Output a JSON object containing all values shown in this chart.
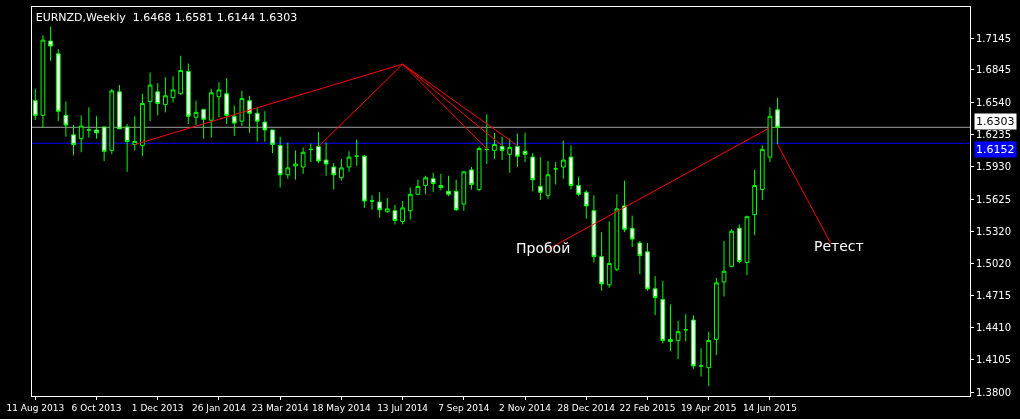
{
  "chart_data": {
    "type": "candlestick",
    "title": "EURNZD,Weekly  1.6468 1.6581 1.6144 1.6303",
    "color": "#00ff00",
    "x": [
      "2013-08-11",
      "2013-08-18",
      "2013-08-25",
      "2013-09-01",
      "2013-09-08",
      "2013-09-15",
      "2013-09-22",
      "2013-09-29",
      "2013-10-06",
      "2013-10-13",
      "2013-10-20",
      "2013-10-27",
      "2013-11-03",
      "2013-11-10",
      "2013-11-17",
      "2013-11-24",
      "2013-12-01",
      "2013-12-08",
      "2013-12-15",
      "2013-12-22",
      "2013-12-29",
      "2014-01-05",
      "2014-01-12",
      "2014-01-19",
      "2014-01-26",
      "2014-02-02",
      "2014-02-09",
      "2014-02-16",
      "2014-02-23",
      "2014-03-02",
      "2014-03-09",
      "2014-03-16",
      "2014-03-23",
      "2014-03-30",
      "2014-04-06",
      "2014-04-13",
      "2014-04-20",
      "2014-04-27",
      "2014-05-04",
      "2014-05-11",
      "2014-05-18",
      "2014-05-25",
      "2014-06-01",
      "2014-06-08",
      "2014-06-15",
      "2014-06-22",
      "2014-06-29",
      "2014-07-06",
      "2014-07-13",
      "2014-07-20",
      "2014-07-27",
      "2014-08-03",
      "2014-08-10",
      "2014-08-17",
      "2014-08-24",
      "2014-08-31",
      "2014-09-07",
      "2014-09-14",
      "2014-09-21",
      "2014-09-28",
      "2014-10-05",
      "2014-10-12",
      "2014-10-19",
      "2014-10-26",
      "2014-11-02",
      "2014-11-09",
      "2014-11-16",
      "2014-11-23",
      "2014-11-30",
      "2014-12-07",
      "2014-12-14",
      "2014-12-21",
      "2014-12-28",
      "2015-01-04",
      "2015-01-11",
      "2015-01-18",
      "2015-01-25",
      "2015-02-01",
      "2015-02-08",
      "2015-02-15",
      "2015-02-22",
      "2015-03-01",
      "2015-03-08",
      "2015-03-15",
      "2015-03-22",
      "2015-03-29",
      "2015-04-05",
      "2015-04-12",
      "2015-04-19",
      "2015-04-26",
      "2015-05-03",
      "2015-05-10",
      "2015-05-17",
      "2015-05-24",
      "2015-05-31",
      "2015-06-07",
      "2015-06-14",
      "2015-06-21"
    ],
    "ohlc": [
      [
        1.6555,
        1.6666,
        1.637,
        1.6416
      ],
      [
        1.6416,
        1.7173,
        1.6297,
        1.7127
      ],
      [
        1.7118,
        1.7256,
        1.6932,
        1.7071
      ],
      [
        1.6997,
        1.7043,
        1.6361,
        1.6454
      ],
      [
        1.6416,
        1.6546,
        1.6214,
        1.6324
      ],
      [
        1.6232,
        1.6324,
        1.6039,
        1.614
      ],
      [
        1.6195,
        1.6416,
        1.6067,
        1.6315
      ],
      [
        1.6278,
        1.6491,
        1.6205,
        1.6278
      ],
      [
        1.6278,
        1.6407,
        1.6195,
        1.6251
      ],
      [
        1.6306,
        1.6306,
        1.5984,
        1.6076
      ],
      [
        1.6085,
        1.6666,
        1.6048,
        1.6647
      ],
      [
        1.6638,
        1.6702,
        1.6288,
        1.6288
      ],
      [
        1.6306,
        1.6334,
        1.5882,
        1.6168
      ],
      [
        1.614,
        1.6407,
        1.6085,
        1.6168
      ],
      [
        1.6131,
        1.662,
        1.603,
        1.6528
      ],
      [
        1.6546,
        1.6822,
        1.6361,
        1.6702
      ],
      [
        1.6638,
        1.6721,
        1.6416,
        1.6528
      ],
      [
        1.6519,
        1.6776,
        1.6444,
        1.6601
      ],
      [
        1.6583,
        1.6785,
        1.6537,
        1.6656
      ],
      [
        1.662,
        1.6979,
        1.6611,
        1.684
      ],
      [
        1.6831,
        1.6905,
        1.6334,
        1.6407
      ],
      [
        1.6398,
        1.6555,
        1.6324,
        1.6444
      ],
      [
        1.6472,
        1.6472,
        1.6195,
        1.6379
      ],
      [
        1.637,
        1.6666,
        1.6205,
        1.6629
      ],
      [
        1.6592,
        1.673,
        1.6398,
        1.6656
      ],
      [
        1.662,
        1.6767,
        1.6334,
        1.6416
      ],
      [
        1.6407,
        1.6509,
        1.6223,
        1.6343
      ],
      [
        1.6361,
        1.6647,
        1.6315,
        1.6574
      ],
      [
        1.6555,
        1.6601,
        1.6251,
        1.6435
      ],
      [
        1.6435,
        1.6491,
        1.6168,
        1.6361
      ],
      [
        1.6352,
        1.6454,
        1.6168,
        1.6278
      ],
      [
        1.6278,
        1.6278,
        1.6058,
        1.614
      ],
      [
        1.6131,
        1.6214,
        1.5734,
        1.5854
      ],
      [
        1.5854,
        1.6159,
        1.5817,
        1.5919
      ],
      [
        1.5938,
        1.6085,
        1.5808,
        1.5956
      ],
      [
        1.5928,
        1.6113,
        1.5863,
        1.6067
      ],
      [
        1.6094,
        1.615,
        1.5974,
        1.6094
      ],
      [
        1.6122,
        1.626,
        1.5965,
        1.5984
      ],
      [
        1.5993,
        1.6159,
        1.5845,
        1.5956
      ],
      [
        1.5928,
        1.5965,
        1.5716,
        1.5854
      ],
      [
        1.5826,
        1.6002,
        1.5799,
        1.5919
      ],
      [
        1.5928,
        1.6076,
        1.5882,
        1.6021
      ],
      [
        1.603,
        1.6187,
        1.5938,
        1.603
      ],
      [
        1.603,
        1.6039,
        1.5541,
        1.5606
      ],
      [
        1.5606,
        1.5661,
        1.5523,
        1.5606
      ],
      [
        1.5597,
        1.5689,
        1.5449,
        1.5523
      ],
      [
        1.5505,
        1.5634,
        1.5495,
        1.5532
      ],
      [
        1.5514,
        1.5569,
        1.5385,
        1.5422
      ],
      [
        1.5413,
        1.5606,
        1.5385,
        1.5541
      ],
      [
        1.5514,
        1.5734,
        1.5431,
        1.567
      ],
      [
        1.567,
        1.5808,
        1.5661,
        1.5744
      ],
      [
        1.5753,
        1.5845,
        1.567,
        1.5826
      ],
      [
        1.5817,
        1.5873,
        1.5689,
        1.5772
      ],
      [
        1.5753,
        1.5863,
        1.5707,
        1.5734
      ],
      [
        1.5698,
        1.5845,
        1.5652,
        1.567
      ],
      [
        1.5698,
        1.5808,
        1.5514,
        1.5523
      ],
      [
        1.5578,
        1.5891,
        1.5514,
        1.5882
      ],
      [
        1.59,
        1.5928,
        1.5716,
        1.5762
      ],
      [
        1.5716,
        1.6122,
        1.5698,
        1.6103
      ],
      [
        1.6094,
        1.6426,
        1.5956,
        1.6094
      ],
      [
        1.6085,
        1.6251,
        1.6002,
        1.614
      ],
      [
        1.6122,
        1.6214,
        1.5993,
        1.6085
      ],
      [
        1.6048,
        1.6195,
        1.5873,
        1.6113
      ],
      [
        1.6122,
        1.6242,
        1.5928,
        1.603
      ],
      [
        1.6076,
        1.6251,
        1.5974,
        1.6048
      ],
      [
        1.6021,
        1.6058,
        1.5698,
        1.5808
      ],
      [
        1.5744,
        1.6021,
        1.5615,
        1.5689
      ],
      [
        1.5661,
        1.5984,
        1.5624,
        1.5854
      ],
      [
        1.591,
        1.5974,
        1.5762,
        1.591
      ],
      [
        1.5928,
        1.6177,
        1.5817,
        1.5993
      ],
      [
        1.6021,
        1.6131,
        1.5716,
        1.5753
      ],
      [
        1.5753,
        1.5836,
        1.5652,
        1.567
      ],
      [
        1.5689,
        1.5707,
        1.544,
        1.556
      ],
      [
        1.5514,
        1.5661,
        1.5025,
        1.508
      ],
      [
        1.508,
        1.5311,
        1.4758,
        1.4823
      ],
      [
        1.4814,
        1.5413,
        1.4786,
        1.5016
      ],
      [
        1.4961,
        1.567,
        1.4942,
        1.5532
      ],
      [
        1.556,
        1.5799,
        1.5311,
        1.5339
      ],
      [
        1.5348,
        1.5468,
        1.5172,
        1.5246
      ],
      [
        1.5209,
        1.5228,
        1.4915,
        1.509
      ],
      [
        1.5126,
        1.5209,
        1.4758,
        1.4776
      ],
      [
        1.4776,
        1.4896,
        1.4527,
        1.4693
      ],
      [
        1.4675,
        1.485,
        1.4261,
        1.4288
      ],
      [
        1.4297,
        1.4629,
        1.4187,
        1.4279
      ],
      [
        1.4288,
        1.4472,
        1.4113,
        1.4371
      ],
      [
        1.4389,
        1.4537,
        1.4279,
        1.4389
      ],
      [
        1.4481,
        1.4527,
        1.402,
        1.4048
      ],
      [
        1.4048,
        1.4215,
        1.3947,
        1.4048
      ],
      [
        1.403,
        1.4371,
        1.3855,
        1.4288
      ],
      [
        1.4297,
        1.4878,
        1.415,
        1.4832
      ],
      [
        1.4841,
        1.5228,
        1.4703,
        1.4942
      ],
      [
        1.4988,
        1.5339,
        1.4979,
        1.532
      ],
      [
        1.5348,
        1.5385,
        1.5016,
        1.5034
      ],
      [
        1.5025,
        1.5468,
        1.4906,
        1.5458
      ],
      [
        1.5477,
        1.59,
        1.5283,
        1.5753
      ],
      [
        1.5716,
        1.6131,
        1.5615,
        1.6094
      ],
      [
        1.6021,
        1.6491,
        1.5974,
        1.6407
      ],
      [
        1.6468,
        1.6581,
        1.6144,
        1.6303
      ]
    ],
    "series": [
      {
        "type": "line",
        "color": "#ff0000",
        "x": [
          "2013-11-10",
          "2014-07-13"
        ],
        "values": [
          1.614,
          1.69
        ]
      },
      {
        "type": "line",
        "color": "#ff0000",
        "x": [
          "2014-04-27",
          "2014-07-13"
        ],
        "values": [
          1.612,
          1.69
        ]
      },
      {
        "type": "line",
        "color": "#ff0000",
        "x": [
          "2014-07-13",
          "2014-09-28"
        ],
        "values": [
          1.69,
          1.61
        ]
      },
      {
        "type": "line",
        "color": "#ff0000",
        "x": [
          "2014-07-13",
          "2014-10-12"
        ],
        "values": [
          1.69,
          1.613
        ]
      },
      {
        "type": "line",
        "color": "#ff0000",
        "x": [
          "2014-07-13",
          "2014-10-26"
        ],
        "values": [
          1.69,
          1.613
        ]
      },
      {
        "type": "line",
        "color": "#ff0000",
        "x": [
          "2014-11-23",
          "2015-06-14"
        ],
        "values": [
          1.515,
          1.63
        ]
      },
      {
        "type": "line",
        "color": "#ff0000",
        "x": [
          "2015-06-21",
          "2015-08-09"
        ],
        "values": [
          1.614,
          1.52
        ]
      }
    ],
    "ref_lines": [
      {
        "axis": "y",
        "value": 1.6303,
        "label": "1.6303",
        "color": "#a0a0a0"
      },
      {
        "axis": "y",
        "value": 1.6152,
        "label": "1.6152",
        "color": "#0000ff"
      }
    ],
    "annotations": [
      "Пробой",
      "Ретест"
    ],
    "xlim": [
      "2013-08-08",
      "2015-12-14"
    ],
    "xticks": [
      {
        "value": "2013-08-11",
        "label": "11 Aug 2013"
      },
      {
        "value": "2013-10-06",
        "label": "6 Oct 2013"
      },
      {
        "value": "2013-12-01",
        "label": "1 Dec 2013"
      },
      {
        "value": "2014-01-26",
        "label": "26 Jan 2014"
      },
      {
        "value": "2014-03-23",
        "label": "23 Mar 2014"
      },
      {
        "value": "2014-05-18",
        "label": "18 May 2014"
      },
      {
        "value": "2014-07-13",
        "label": "13 Jul 2014"
      },
      {
        "value": "2014-09-07",
        "label": "7 Sep 2014"
      },
      {
        "value": "2014-11-02",
        "label": "2 Nov 2014"
      },
      {
        "value": "2014-12-28",
        "label": "28 Dec 2014"
      },
      {
        "value": "2015-02-22",
        "label": "22 Feb 2015"
      },
      {
        "value": "2015-04-19",
        "label": "19 Apr 2015"
      },
      {
        "value": "2015-06-14",
        "label": "14 Jun 2015"
      }
    ],
    "ylim": [
      1.3763,
      1.744
    ],
    "yticks": [
      {
        "value": 1.7145,
        "label": "1.7145"
      },
      {
        "value": 1.6845,
        "label": "1.6845"
      },
      {
        "value": 1.654,
        "label": "1.6540"
      },
      {
        "value": 1.6235,
        "label": "1.6235"
      },
      {
        "value": 1.593,
        "label": "1.5930"
      },
      {
        "value": 1.5625,
        "label": "1.5625"
      },
      {
        "value": 1.532,
        "label": "1.5320"
      },
      {
        "value": 1.502,
        "label": "1.5020"
      },
      {
        "value": 1.4715,
        "label": "1.4715"
      },
      {
        "value": 1.441,
        "label": "1.4410"
      },
      {
        "value": 1.4105,
        "label": "1.4105"
      },
      {
        "value": 1.38,
        "label": "1.3800"
      }
    ],
    "grid": false
  }
}
